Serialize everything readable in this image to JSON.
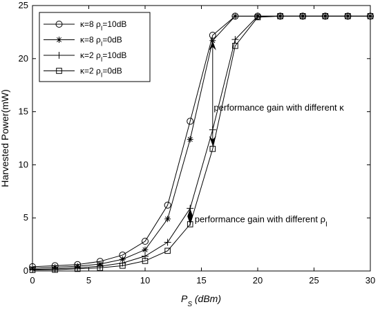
{
  "chart_data": {
    "type": "line",
    "xlabel": "P_S (dBm)",
    "ylabel": "Harvested Power(mW)",
    "xlim": [
      0,
      30
    ],
    "ylim": [
      0,
      25
    ],
    "xticks": [
      0,
      5,
      10,
      15,
      20,
      25,
      30
    ],
    "yticks": [
      0,
      5,
      10,
      15,
      20,
      25
    ],
    "grid": false,
    "legend_position": "top-left",
    "x": [
      0,
      2,
      4,
      6,
      8,
      10,
      12,
      14,
      16,
      18,
      20,
      22,
      24,
      26,
      28,
      30
    ],
    "series": [
      {
        "name": "κ=8 ρ_I=10dB",
        "label_main": "κ=8 ρ",
        "label_sub": "I",
        "label_tail": "=10dB",
        "marker": "circle",
        "values": [
          0.4,
          0.5,
          0.6,
          0.9,
          1.5,
          2.8,
          6.2,
          14.1,
          22.2,
          24.0,
          24.0,
          24.0,
          24.0,
          24.0,
          24.0,
          24.0
        ]
      },
      {
        "name": "κ=8 ρ_I=0dB",
        "label_main": "κ=8 ρ",
        "label_sub": "I",
        "label_tail": "=0dB",
        "marker": "asterisk",
        "values": [
          0.25,
          0.35,
          0.45,
          0.65,
          1.1,
          2.0,
          4.9,
          12.4,
          21.7,
          24.0,
          24.0,
          24.0,
          24.0,
          24.0,
          24.0,
          24.0
        ]
      },
      {
        "name": "κ=2 ρ_I=10dB",
        "label_main": "κ=2 ρ",
        "label_sub": "I",
        "label_tail": "=10dB",
        "marker": "plus",
        "values": [
          0.15,
          0.2,
          0.3,
          0.45,
          0.75,
          1.4,
          2.7,
          5.9,
          13.3,
          21.8,
          24.0,
          24.0,
          24.0,
          24.0,
          24.0,
          24.0
        ]
      },
      {
        "name": "κ=2 ρ_I=0dB",
        "label_main": "κ=2 ρ",
        "label_sub": "I",
        "label_tail": "=0dB",
        "marker": "square",
        "values": [
          0.1,
          0.12,
          0.2,
          0.3,
          0.5,
          0.95,
          1.9,
          4.4,
          11.5,
          21.2,
          23.9,
          24.0,
          24.0,
          24.0,
          24.0,
          24.0
        ]
      }
    ],
    "annotations": [
      {
        "text_main": "performance gain with different κ",
        "text_sub": "",
        "text_x": 16.1,
        "text_y": 15.1,
        "arrow_x": 16,
        "arrow_from": 21.7,
        "arrow_to": 11.8
      },
      {
        "text_main": "performance gain with different ρ",
        "text_sub": "I",
        "text_x": 14.4,
        "text_y": 4.6,
        "arrow_x": 14,
        "arrow_from": 5.9,
        "arrow_to": 4.4
      }
    ]
  }
}
